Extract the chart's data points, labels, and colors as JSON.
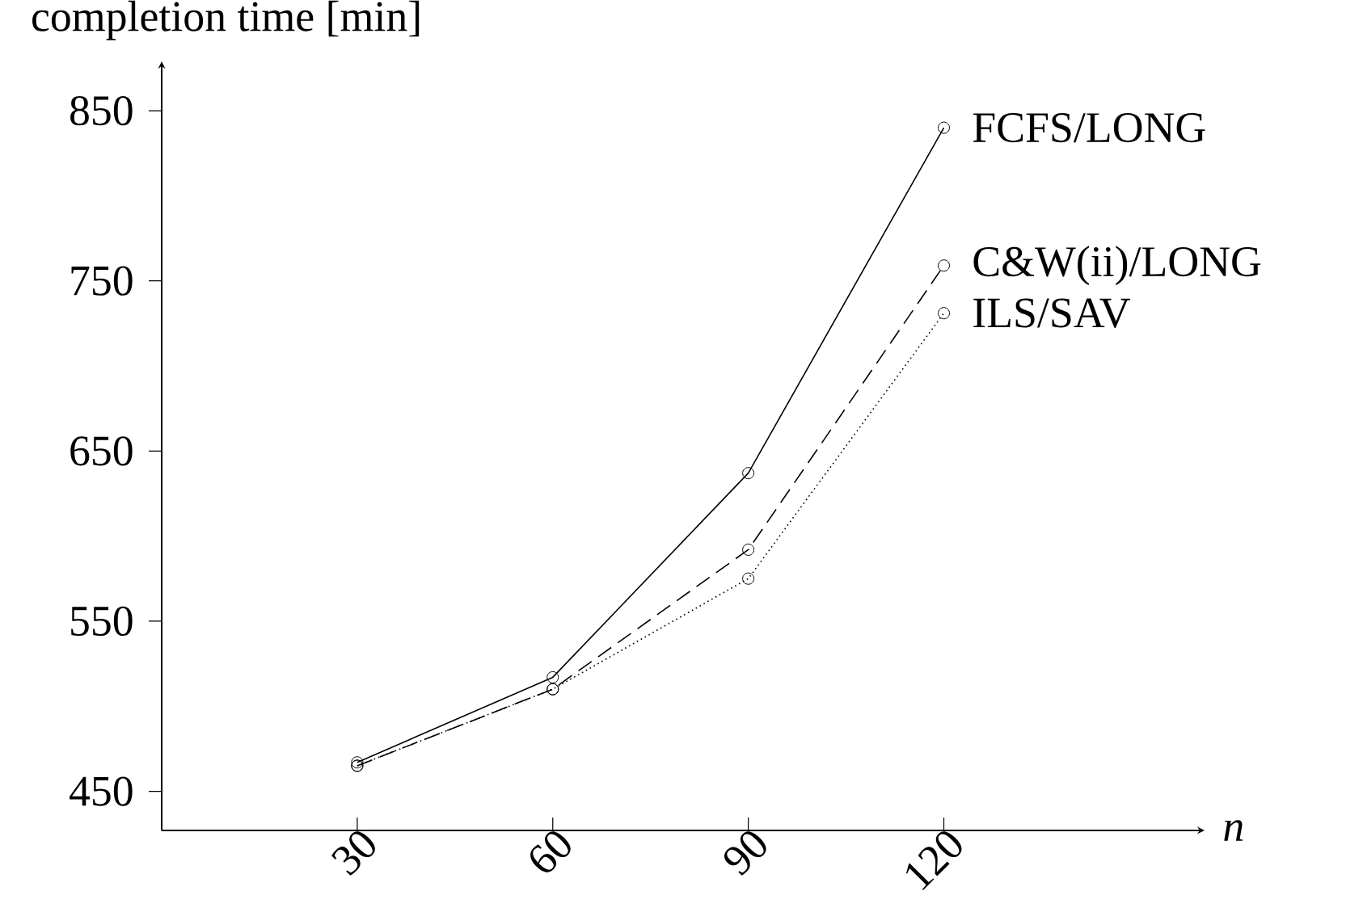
{
  "chart_data": {
    "type": "line",
    "ylabel": "completion time [min]",
    "xlabel": "*n*",
    "x": [
      30,
      60,
      90,
      120
    ],
    "xlim": [
      0,
      160
    ],
    "xticks": [
      30,
      60,
      90,
      120
    ],
    "ylim": [
      427,
      879
    ],
    "yticks": [
      450,
      550,
      650,
      750,
      850
    ],
    "marker": "circle",
    "series": [
      {
        "name": "FCFS/LONG",
        "color": "#000000",
        "line_style": "solid",
        "values": [
          467,
          517,
          637,
          840
        ]
      },
      {
        "name": "C&W(ii)/LONG",
        "color": "#000000",
        "line_style": "dashed",
        "values": [
          465,
          510,
          592,
          759
        ]
      },
      {
        "name": "ILS/SAV",
        "color": "#000000",
        "line_style": "dotted",
        "values": [
          465,
          510,
          575,
          731
        ]
      }
    ]
  }
}
